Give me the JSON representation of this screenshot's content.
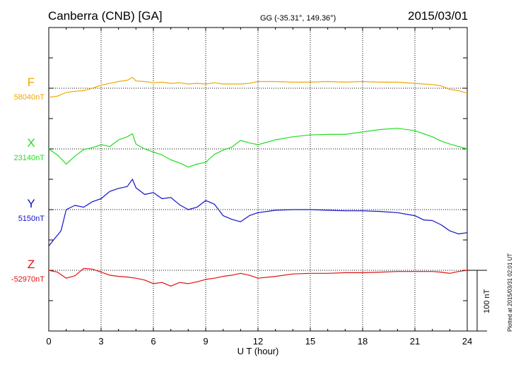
{
  "header": {
    "station": "Canberra (CNB)  [GA]",
    "coords": "GG (-35.31°, 149.36°)",
    "date": "2015/03/01"
  },
  "footer": {
    "xlabel": "U T (hour)",
    "plotted": "Plotted at 2015/03/31 02:01  UT",
    "scale_label": "100 nT"
  },
  "chart_data": {
    "type": "line",
    "title": "Canberra (CNB)  [GA]",
    "xlabel": "U T (hour)",
    "ylabel": "",
    "xlim": [
      0,
      24
    ],
    "xticks": [
      "0",
      "3",
      "6",
      "9",
      "12",
      "15",
      "18",
      "21",
      "24"
    ],
    "grid": true,
    "scale_bar_nT": 100,
    "series": [
      {
        "name": "F",
        "baseline_label": "58040nT",
        "baseline_nT": 58040,
        "color": "#f0a800",
        "x": [
          0,
          0.5,
          1,
          1.5,
          2,
          2.5,
          3,
          3.5,
          4,
          4.5,
          4.8,
          5,
          5.5,
          6,
          6.5,
          7,
          7.5,
          8,
          8.5,
          9,
          9.5,
          10,
          10.5,
          11,
          11.5,
          12,
          13,
          14,
          15,
          16,
          17,
          18,
          19,
          20,
          21,
          21.5,
          22,
          22.5,
          23,
          23.5,
          24
        ],
        "values": [
          58025,
          58027,
          58033,
          58035,
          58036,
          58040,
          58045,
          58048,
          58051,
          58053,
          58058,
          58052,
          58051,
          58049,
          58050,
          58048,
          58049,
          58047,
          58048,
          58047,
          58049,
          58047,
          58047,
          58047,
          58048,
          58051,
          58051,
          58050,
          58050,
          58051,
          58050,
          58051,
          58050,
          58050,
          58048,
          58047,
          58046,
          58044,
          58038,
          58036,
          58032
        ]
      },
      {
        "name": "X",
        "baseline_label": "23140nT",
        "baseline_nT": 23140,
        "color": "#22dd22",
        "x": [
          0,
          0.5,
          1,
          1.5,
          2,
          2.5,
          3,
          3.5,
          4,
          4.5,
          4.8,
          5,
          5.5,
          6,
          6.5,
          7,
          7.5,
          8,
          8.5,
          9,
          9.5,
          10,
          10.5,
          11,
          11.5,
          12,
          13,
          14,
          15,
          16,
          17,
          18,
          19,
          20,
          21,
          21.5,
          22,
          22.5,
          23,
          23.5,
          24
        ],
        "values": [
          23140,
          23130,
          23115,
          23128,
          23139,
          23142,
          23147,
          23144,
          23155,
          23160,
          23165,
          23148,
          23140,
          23135,
          23130,
          23122,
          23117,
          23110,
          23115,
          23118,
          23131,
          23138,
          23143,
          23154,
          23150,
          23147,
          23155,
          23160,
          23163,
          23164,
          23164,
          23168,
          23172,
          23174,
          23170,
          23165,
          23160,
          23153,
          23148,
          23144,
          23140
        ]
      },
      {
        "name": "Y",
        "baseline_label": "5150nT",
        "baseline_nT": 5150,
        "color": "#1010cc",
        "x": [
          0,
          0.3,
          0.7,
          1,
          1.5,
          2,
          2.5,
          3,
          3.5,
          4,
          4.5,
          4.8,
          5,
          5.5,
          6,
          6.5,
          7,
          7.5,
          8,
          8.5,
          9,
          9.5,
          10,
          10.5,
          11,
          11.5,
          12,
          13,
          14,
          15,
          16,
          17,
          18,
          19,
          20,
          21,
          21.5,
          22,
          22.5,
          23,
          23.5,
          24
        ],
        "values": [
          5090,
          5101,
          5115,
          5150,
          5157,
          5154,
          5163,
          5168,
          5180,
          5185,
          5188,
          5200,
          5186,
          5175,
          5178,
          5168,
          5170,
          5158,
          5150,
          5154,
          5165,
          5159,
          5140,
          5134,
          5130,
          5140,
          5145,
          5149,
          5150,
          5150,
          5149,
          5148,
          5148,
          5147,
          5145,
          5140,
          5133,
          5132,
          5125,
          5115,
          5110,
          5112
        ]
      },
      {
        "name": "Z",
        "baseline_label": "-52970nT",
        "baseline_nT": -52970,
        "color": "#e01010",
        "x": [
          0,
          0.5,
          1,
          1.5,
          2,
          2.5,
          3,
          3.5,
          4,
          4.5,
          5,
          5.5,
          6,
          6.5,
          7,
          7.5,
          8,
          8.5,
          9,
          9.5,
          10,
          10.5,
          11,
          11.5,
          12,
          13,
          14,
          15,
          16,
          17,
          18,
          19,
          20,
          21,
          22,
          22.5,
          23,
          23.5,
          24
        ],
        "values": [
          -52970,
          -52973,
          -52983,
          -52979,
          -52967,
          -52968,
          -52973,
          -52978,
          -52980,
          -52981,
          -52983,
          -52986,
          -52992,
          -52990,
          -52996,
          -52990,
          -52992,
          -52989,
          -52985,
          -52983,
          -52980,
          -52978,
          -52975,
          -52978,
          -52983,
          -52980,
          -52976,
          -52975,
          -52975,
          -52974,
          -52974,
          -52973,
          -52972,
          -52972,
          -52972,
          -52973,
          -52975,
          -52972,
          -52970
        ]
      }
    ]
  }
}
